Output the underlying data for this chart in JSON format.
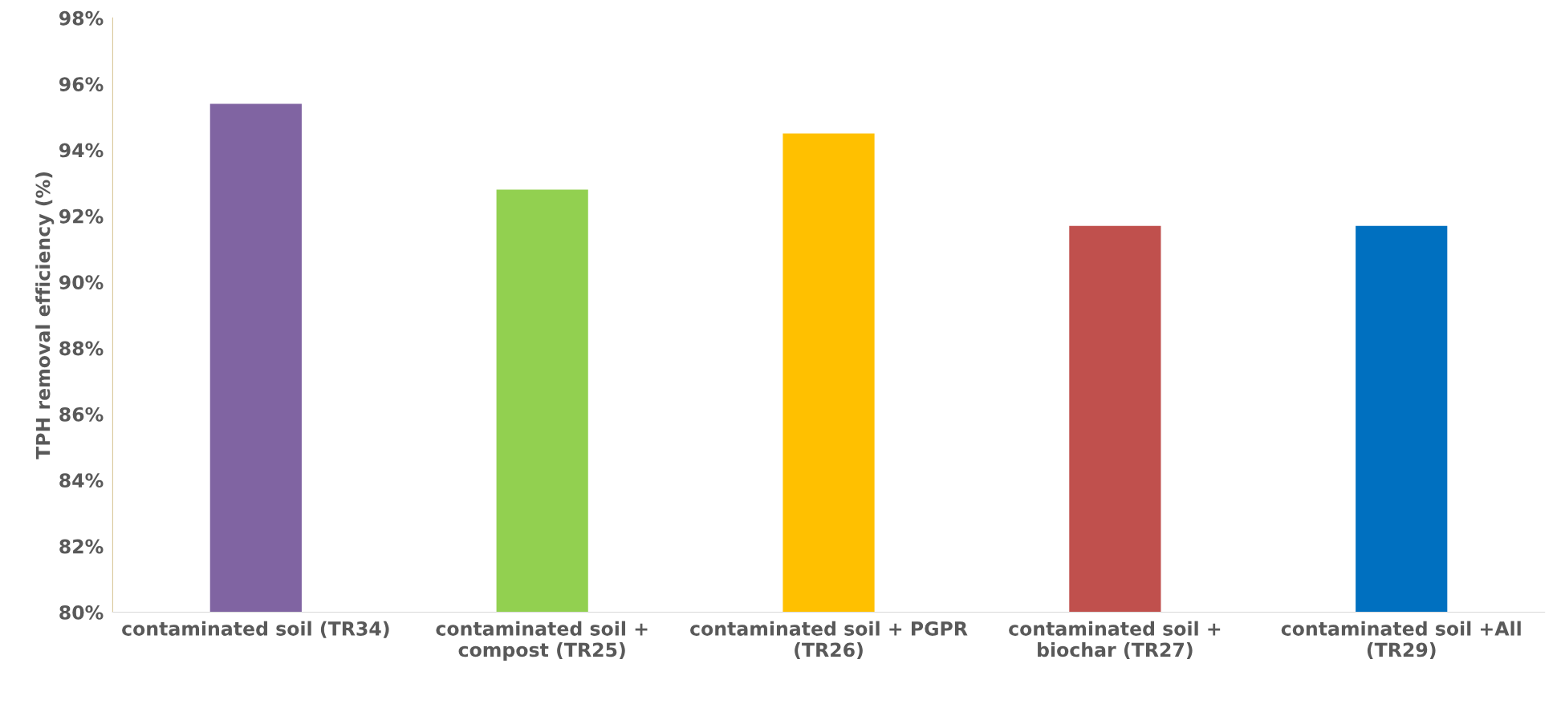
{
  "chart_data": {
    "type": "bar",
    "ylabel": "TPH removal efficiency (%)",
    "categories": [
      "contaminated soil (TR34)",
      "contaminated soil +\ncompost (TR25)",
      "contaminated soil + PGPR\n(TR26)",
      "contaminated soil +\nbiochar (TR27)",
      "contaminated soil +All\n(TR29)"
    ],
    "values": [
      95.4,
      92.8,
      94.5,
      91.7,
      91.7
    ],
    "colors": [
      "#8064a2",
      "#92d050",
      "#ffc000",
      "#c0504d",
      "#0070c0"
    ],
    "ylim": [
      80,
      98
    ],
    "yticks": [
      {
        "value": 80,
        "label": "80%"
      },
      {
        "value": 82,
        "label": "82%"
      },
      {
        "value": 84,
        "label": "84%"
      },
      {
        "value": 86,
        "label": "86%"
      },
      {
        "value": 88,
        "label": "88%"
      },
      {
        "value": 90,
        "label": "90%"
      },
      {
        "value": 92,
        "label": "92%"
      },
      {
        "value": 94,
        "label": "94%"
      },
      {
        "value": 96,
        "label": "96%"
      },
      {
        "value": 98,
        "label": "98%"
      }
    ],
    "grid": false,
    "legend": false
  }
}
